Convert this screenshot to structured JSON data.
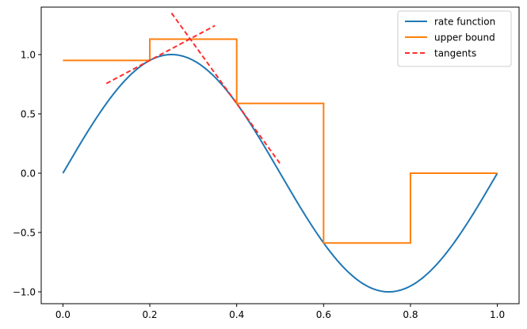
{
  "chart_data": {
    "type": "line",
    "title": "",
    "xlabel": "",
    "ylabel": "",
    "xlim": [
      -0.05,
      1.05
    ],
    "ylim": [
      -1.1,
      1.4
    ],
    "x_ticks": [
      0.0,
      0.2,
      0.4,
      0.6,
      0.8,
      1.0
    ],
    "x_tick_labels": [
      "0.0",
      "0.2",
      "0.4",
      "0.6",
      "0.8",
      "1.0"
    ],
    "y_ticks": [
      -1.0,
      -0.5,
      0.0,
      0.5,
      1.0
    ],
    "y_tick_labels": [
      "−1.0",
      "−0.5",
      "0.0",
      "0.5",
      "1.0"
    ],
    "grid": false,
    "legend_position": "top-right",
    "series": [
      {
        "name": "rate function",
        "kind": "curve",
        "function": "sin(2*pi*x)",
        "domain": [
          0,
          1
        ],
        "color": "#1f77b4",
        "style": "solid"
      },
      {
        "name": "upper bound",
        "kind": "step",
        "intervals": [
          {
            "x0": 0.0,
            "x1": 0.2,
            "y": 0.951
          },
          {
            "x0": 0.2,
            "x1": 0.4,
            "y": 1.13
          },
          {
            "x0": 0.4,
            "x1": 0.6,
            "y": 0.588
          },
          {
            "x0": 0.6,
            "x1": 0.8,
            "y": -0.588
          },
          {
            "x0": 0.8,
            "x1": 1.0,
            "y": 0.0
          }
        ],
        "color": "#ff7f0e",
        "style": "solid"
      },
      {
        "name": "tangents",
        "kind": "segments",
        "segments": [
          {
            "x": [
              0.1,
              0.35
            ],
            "y": [
              0.756,
              1.244
            ]
          },
          {
            "x": [
              0.25,
              0.5
            ],
            "y": [
              1.35,
              0.08
            ]
          }
        ],
        "color": "#ff2d2d",
        "style": "dashed"
      }
    ]
  }
}
